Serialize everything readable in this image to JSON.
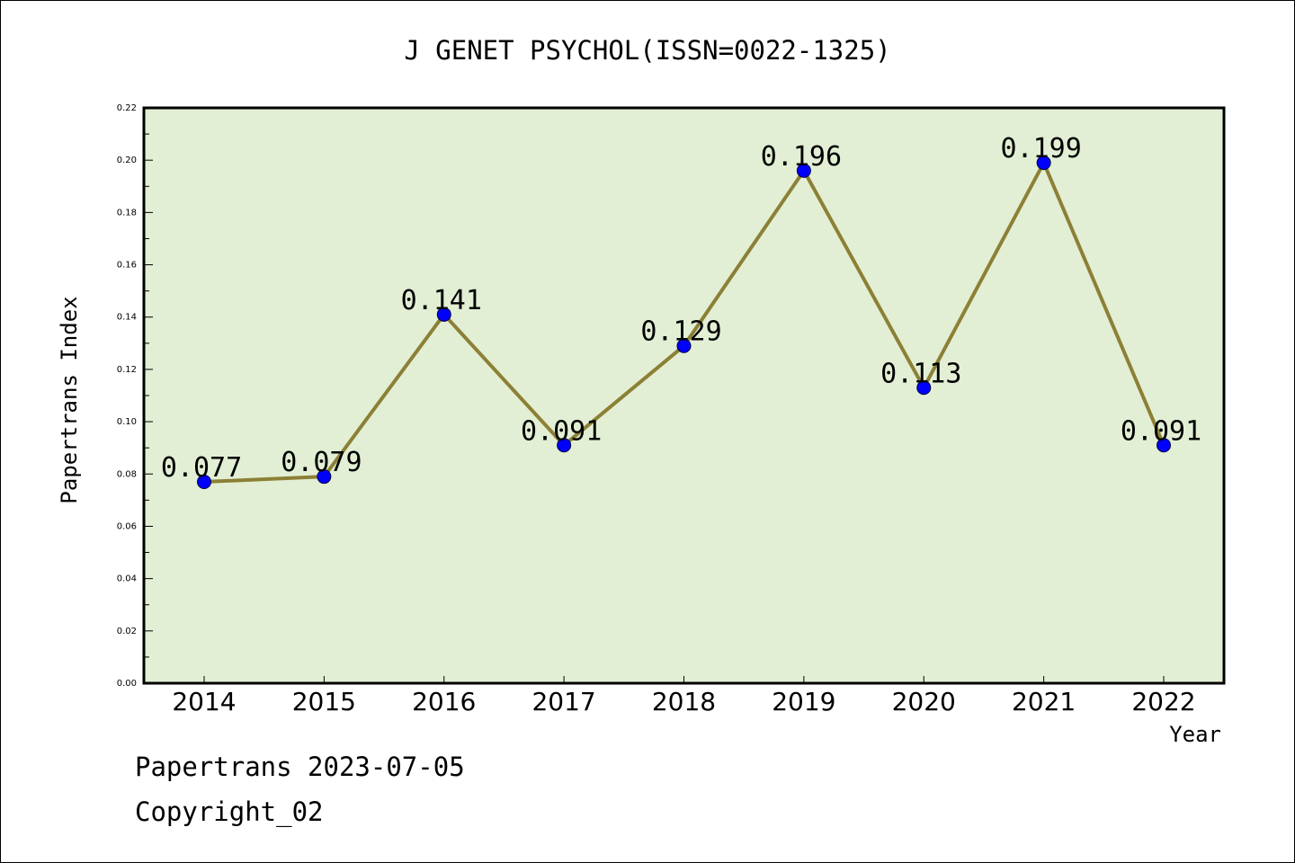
{
  "chart_data": {
    "type": "line",
    "title": "J GENET PSYCHOL(ISSN=0022-1325)",
    "xlabel": "Year",
    "ylabel": "Papertrans Index",
    "categories": [
      "2014",
      "2015",
      "2016",
      "2017",
      "2018",
      "2019",
      "2020",
      "2021",
      "2022"
    ],
    "values": [
      0.077,
      0.079,
      0.141,
      0.091,
      0.129,
      0.196,
      0.113,
      0.199,
      0.091
    ],
    "data_labels": [
      "0.077",
      "0.079",
      "0.141",
      "0.091",
      "0.129",
      "0.196",
      "0.113",
      "0.199",
      "0.091"
    ],
    "ylim": [
      0,
      0.22
    ],
    "yticks": [
      0.0,
      0.02,
      0.04,
      0.06,
      0.08,
      0.1,
      0.12,
      0.14,
      0.16,
      0.18,
      0.2,
      0.22
    ],
    "ytick_labels": [
      "0.00",
      "0.02",
      "0.04",
      "0.06",
      "0.08",
      "0.10",
      "0.12",
      "0.14",
      "0.16",
      "0.18",
      "0.20",
      "0.22"
    ],
    "grid": false,
    "legend": "none",
    "colors": {
      "plot_background": "#e2efd4",
      "line": "#8c8036",
      "marker": "#0000ff"
    }
  },
  "footer": {
    "line1": "Papertrans 2023-07-05",
    "line2": "Copyright_02"
  }
}
